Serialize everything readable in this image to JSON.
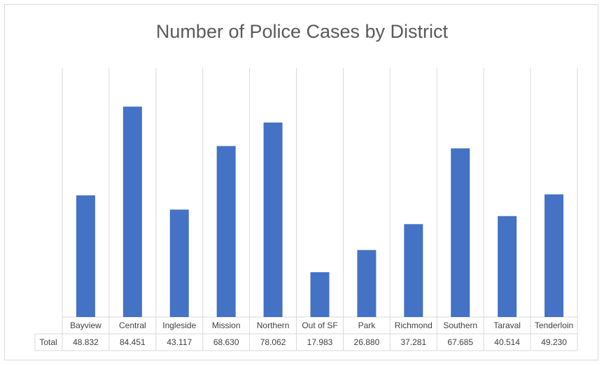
{
  "chart_data": {
    "type": "bar",
    "title": "Number of Police Cases by District",
    "categories": [
      "Bayview",
      "Central",
      "Ingleside",
      "Mission",
      "Northern",
      "Out of SF",
      "Park",
      "Richmond",
      "Southern",
      "Taraval",
      "Tenderloin"
    ],
    "series": [
      {
        "name": "Total",
        "values": [
          48.832,
          84.451,
          43.117,
          68.63,
          78.062,
          17.983,
          26.88,
          37.281,
          67.685,
          40.514,
          49.23
        ],
        "value_labels": [
          "48.832",
          "84.451",
          "43.117",
          "68.630",
          "78.062",
          "17.983",
          "26.880",
          "37.281",
          "67.685",
          "40.514",
          "49.230"
        ]
      }
    ],
    "ylim": [
      0,
      100
    ],
    "grid": "vertical category separators",
    "legend": "none",
    "data_table": true,
    "bar_color": "#4472c4"
  }
}
